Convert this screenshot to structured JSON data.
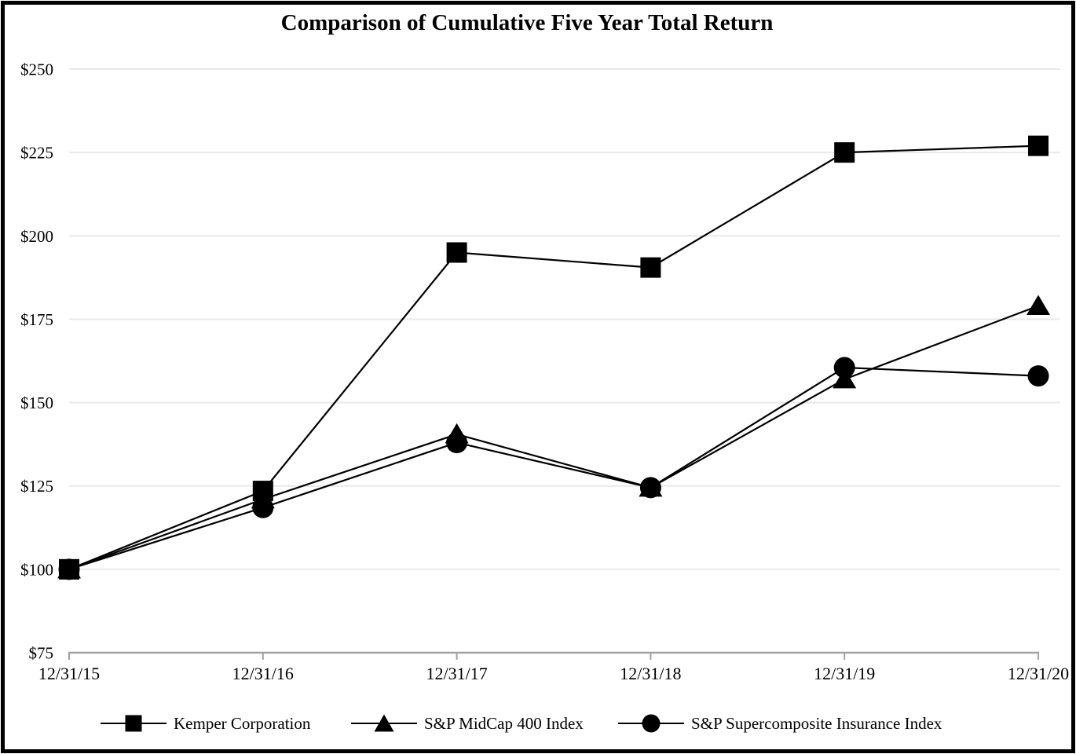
{
  "chart_data": {
    "type": "line",
    "title": "Comparison of Cumulative Five Year Total Return",
    "categories": [
      "12/31/15",
      "12/31/16",
      "12/31/17",
      "12/31/18",
      "12/31/19",
      "12/31/20"
    ],
    "series": [
      {
        "id": "kemper",
        "name": "Kemper Corporation",
        "marker": "square",
        "values": [
          100,
          123.5,
          195,
          190.5,
          225,
          227
        ]
      },
      {
        "id": "sp-midcap-400",
        "name": "S&P MidCap 400 Index",
        "marker": "triangle",
        "values": [
          100,
          121,
          140.5,
          124.5,
          157,
          179
        ]
      },
      {
        "id": "sp-supercomposite-insurance",
        "name": "S&P Supercomposite Insurance Index",
        "marker": "circle",
        "values": [
          100,
          118.5,
          138,
          124.5,
          160.5,
          158
        ]
      }
    ],
    "y_ticks": [
      {
        "value": 250,
        "label": "$250"
      },
      {
        "value": 225,
        "label": "$225"
      },
      {
        "value": 200,
        "label": "$200"
      },
      {
        "value": 175,
        "label": "$175"
      },
      {
        "value": 150,
        "label": "$150"
      },
      {
        "value": 125,
        "label": "$125"
      },
      {
        "value": 100,
        "label": "$100"
      },
      {
        "value": 75,
        "label": "$75"
      }
    ],
    "ylim": [
      75,
      250
    ],
    "xlabel": "",
    "ylabel": "",
    "grid": true,
    "legend_position": "bottom",
    "colors": {
      "series": "#000000",
      "gridline": "#e9e9e9",
      "axis": "#a1a1a1",
      "text": "#000000",
      "background": "#ffffff",
      "frame_border": "#000000"
    }
  }
}
